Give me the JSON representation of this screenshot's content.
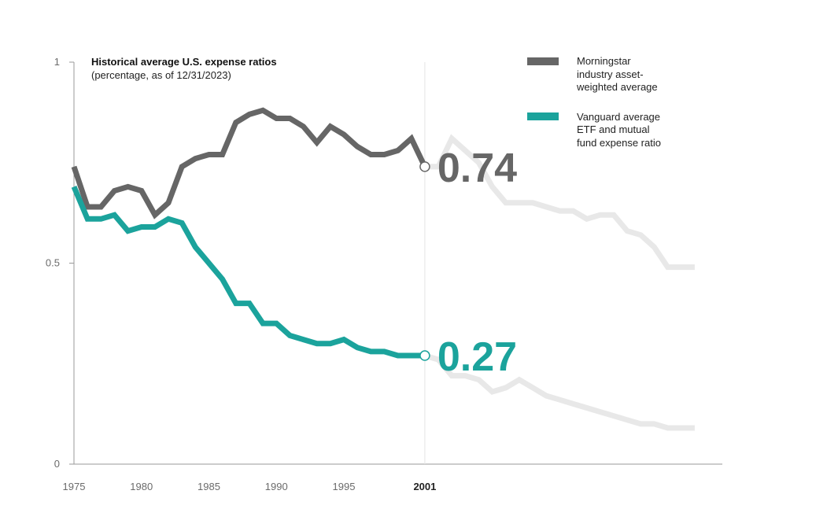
{
  "chart_data": {
    "type": "line",
    "title": "Historical average U.S. expense ratios",
    "subtitle": "(percentage, as of 12/31/2023)",
    "xlabel": "",
    "ylabel": "",
    "xlim": [
      1975,
      2023
    ],
    "ylim": [
      0,
      1
    ],
    "x_ticks": [
      "1975",
      "1980",
      "1985",
      "1990",
      "1995"
    ],
    "x_ticks_values": [
      1975,
      1980,
      1985,
      1990,
      1995
    ],
    "highlight_year": "2001",
    "highlight_year_value": 2001,
    "y_ticks": [
      "0",
      "0.5",
      "1"
    ],
    "y_ticks_values": [
      0,
      0.5,
      1
    ],
    "series": [
      {
        "name": "Morningstar industry asset-weighted average",
        "legend_lines": [
          "Morningstar",
          "industry asset-",
          "weighted average"
        ],
        "color": "#666666",
        "highlight_value": "0.74",
        "x": [
          1975,
          1976,
          1977,
          1978,
          1979,
          1980,
          1981,
          1982,
          1983,
          1984,
          1985,
          1986,
          1987,
          1988,
          1989,
          1990,
          1991,
          1992,
          1993,
          1994,
          1995,
          1996,
          1997,
          1998,
          1999,
          2000,
          2001
        ],
        "values": [
          0.74,
          0.64,
          0.64,
          0.68,
          0.69,
          0.68,
          0.62,
          0.65,
          0.74,
          0.76,
          0.77,
          0.77,
          0.85,
          0.87,
          0.88,
          0.86,
          0.86,
          0.84,
          0.8,
          0.84,
          0.82,
          0.79,
          0.77,
          0.77,
          0.78,
          0.81,
          0.74
        ]
      },
      {
        "name": "Vanguard average ETF and mutual fund expense ratio",
        "legend_lines": [
          "Vanguard average",
          "ETF and mutual",
          "fund expense ratio"
        ],
        "color": "#1ba39c",
        "highlight_value": "0.27",
        "x": [
          1975,
          1976,
          1977,
          1978,
          1979,
          1980,
          1981,
          1982,
          1983,
          1984,
          1985,
          1986,
          1987,
          1988,
          1989,
          1990,
          1991,
          1992,
          1993,
          1994,
          1995,
          1996,
          1997,
          1998,
          1999,
          2000,
          2001
        ],
        "values": [
          0.69,
          0.61,
          0.61,
          0.62,
          0.58,
          0.59,
          0.59,
          0.61,
          0.6,
          0.54,
          0.5,
          0.46,
          0.4,
          0.4,
          0.35,
          0.35,
          0.32,
          0.31,
          0.3,
          0.3,
          0.31,
          0.29,
          0.28,
          0.28,
          0.27,
          0.27,
          0.27
        ]
      }
    ],
    "ghost_series": [
      {
        "name": "Morningstar industry asset-weighted average (after 2001)",
        "color": "#e8e8e8",
        "x": [
          2001,
          2002,
          2003,
          2004,
          2005,
          2006,
          2007,
          2008,
          2009,
          2010,
          2011,
          2012,
          2013,
          2014,
          2015,
          2016,
          2017,
          2018,
          2019,
          2020,
          2021
        ],
        "values": [
          0.74,
          0.74,
          0.81,
          0.78,
          0.75,
          0.69,
          0.65,
          0.65,
          0.65,
          0.64,
          0.63,
          0.63,
          0.61,
          0.62,
          0.62,
          0.58,
          0.57,
          0.54,
          0.49,
          0.49,
          0.49
        ]
      },
      {
        "name": "Vanguard average ETF and mutual fund expense ratio (after 2001)",
        "color": "#e8e8e8",
        "x": [
          2001,
          2002,
          2003,
          2004,
          2005,
          2006,
          2007,
          2008,
          2009,
          2010,
          2011,
          2012,
          2013,
          2014,
          2015,
          2016,
          2017,
          2018,
          2019,
          2020,
          2021
        ],
        "values": [
          0.27,
          0.26,
          0.22,
          0.22,
          0.21,
          0.18,
          0.19,
          0.21,
          0.19,
          0.17,
          0.16,
          0.15,
          0.14,
          0.13,
          0.12,
          0.11,
          0.1,
          0.1,
          0.09,
          0.09,
          0.09
        ]
      }
    ],
    "grid": false,
    "legend_position": "top-right"
  }
}
